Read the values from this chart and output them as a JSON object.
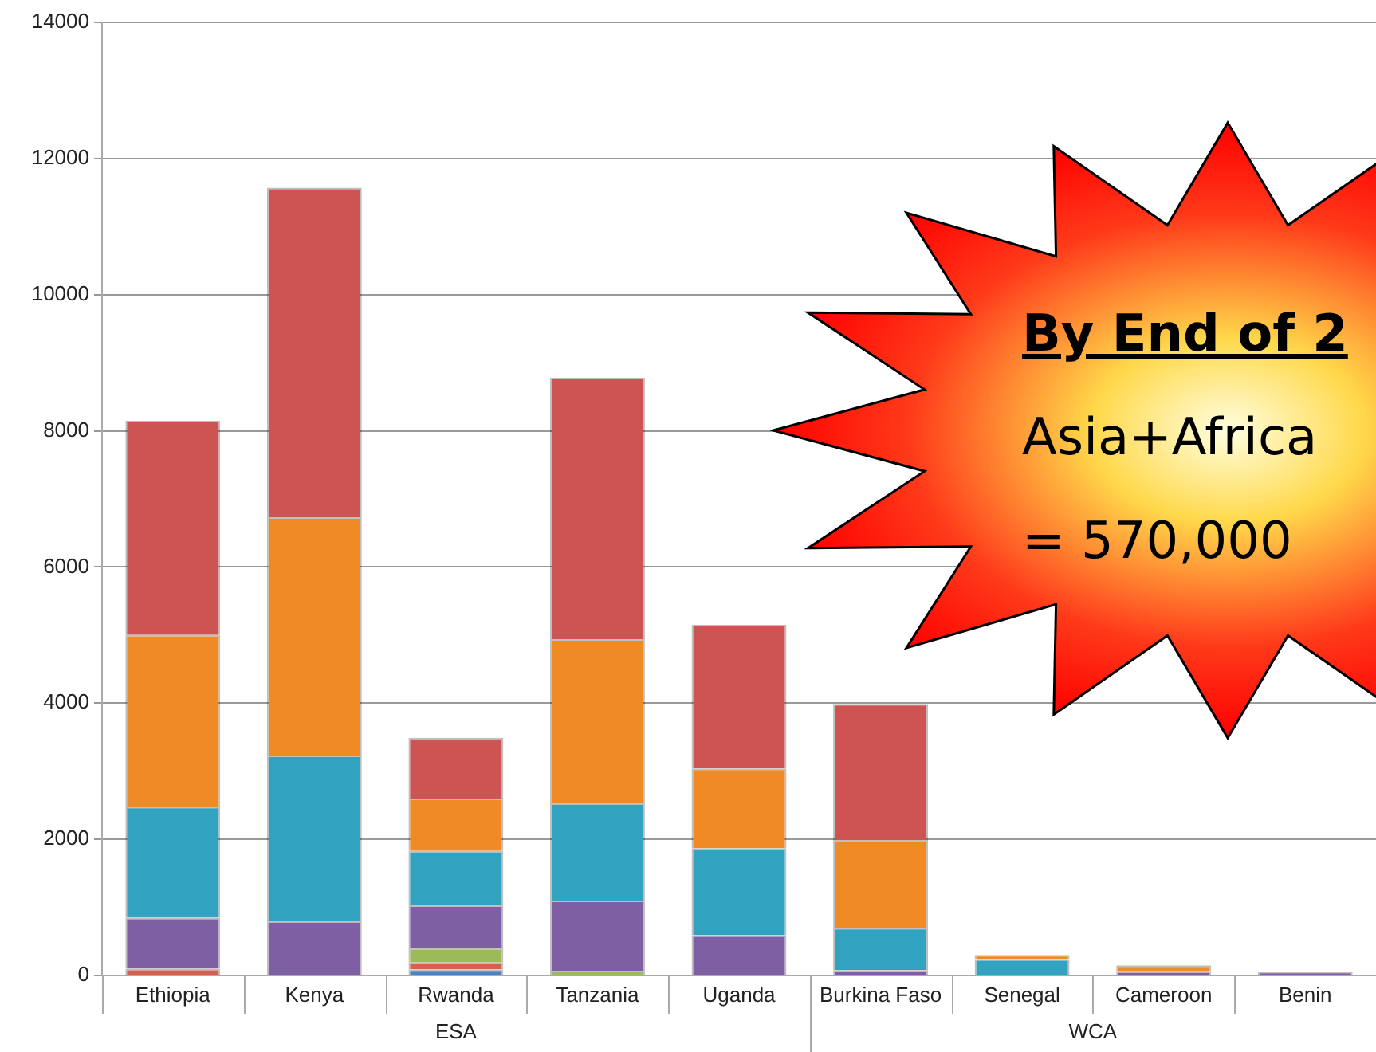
{
  "chart_data": {
    "type": "bar",
    "stacked": true,
    "categories": [
      "Ethiopia",
      "Kenya",
      "Rwanda",
      "Tanzania",
      "Uganda",
      "Burkina Faso",
      "Senegal",
      "Cameroon",
      "Benin"
    ],
    "series": [
      {
        "color": "#4f81bd",
        "values": [
          0,
          0,
          90,
          0,
          0,
          0,
          0,
          0,
          0
        ]
      },
      {
        "color": "#d9604f",
        "values": [
          100,
          0,
          100,
          0,
          0,
          0,
          0,
          0,
          0
        ]
      },
      {
        "color": "#9bbb59",
        "values": [
          0,
          0,
          210,
          70,
          0,
          0,
          0,
          0,
          0
        ]
      },
      {
        "color": "#7f5fa3",
        "values": [
          750,
          800,
          630,
          1030,
          590,
          80,
          0,
          60,
          50
        ]
      },
      {
        "color": "#31a3c0",
        "values": [
          1630,
          2430,
          800,
          1430,
          1280,
          620,
          240,
          0,
          0
        ]
      },
      {
        "color": "#f08a24",
        "values": [
          2520,
          3500,
          770,
          2410,
          1170,
          1290,
          60,
          90,
          0
        ]
      },
      {
        "color": "#cd5452",
        "values": [
          3150,
          4840,
          890,
          3840,
          2110,
          2000,
          0,
          0,
          0
        ]
      }
    ],
    "ylim": [
      0,
      14000
    ],
    "yticks": [
      0,
      2000,
      4000,
      6000,
      8000,
      10000,
      12000,
      14000
    ],
    "grid": "y",
    "legend": false,
    "annotations": [
      "ESA",
      "WCA",
      "By End of 2",
      "Asia+Africa",
      "= 570,000"
    ]
  }
}
